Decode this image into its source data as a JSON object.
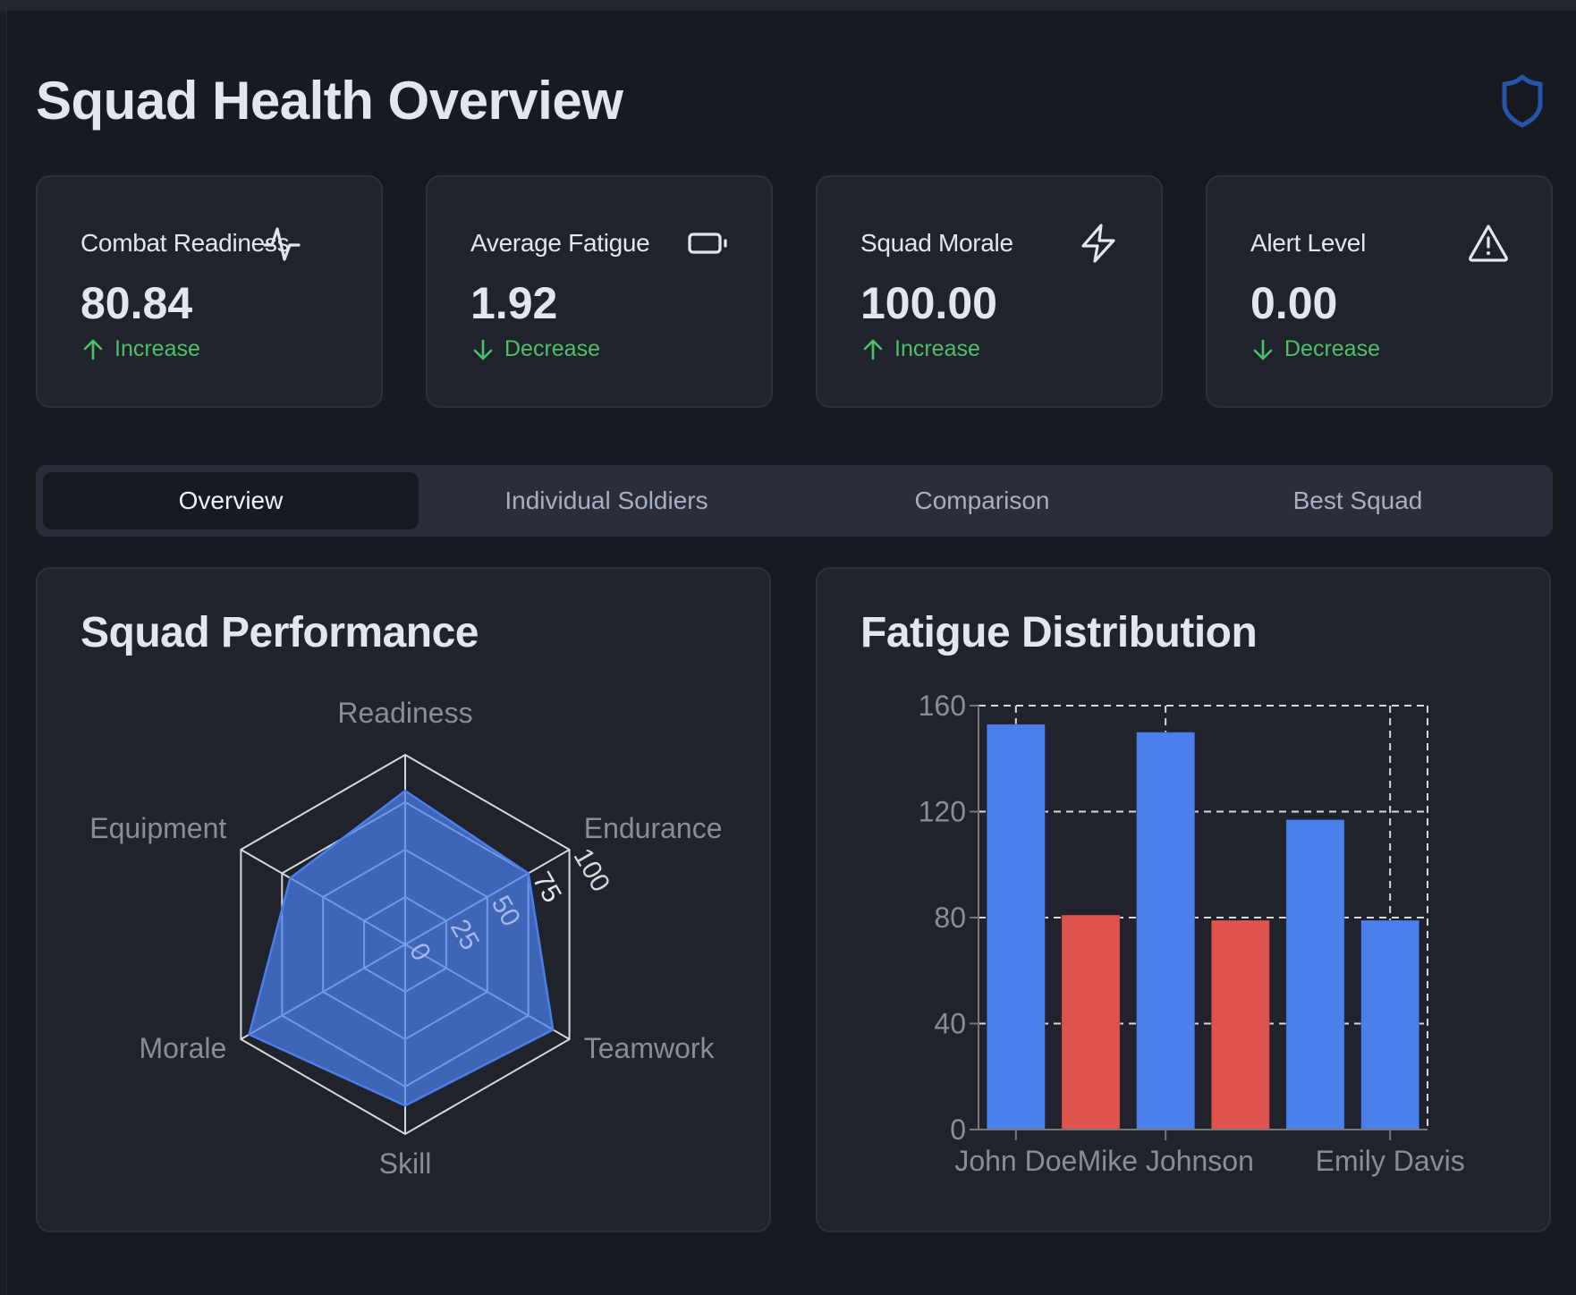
{
  "header": {
    "title": "Squad Health Overview",
    "icon": "shield-icon"
  },
  "stats": [
    {
      "label": "Combat Readiness",
      "value": "80.84",
      "trend": "Increase",
      "trend_dir": "up",
      "icon": "activity-icon"
    },
    {
      "label": "Average Fatigue",
      "value": "1.92",
      "trend": "Decrease",
      "trend_dir": "down",
      "icon": "battery-icon"
    },
    {
      "label": "Squad Morale",
      "value": "100.00",
      "trend": "Increase",
      "trend_dir": "up",
      "icon": "zap-icon"
    },
    {
      "label": "Alert Level",
      "value": "0.00",
      "trend": "Decrease",
      "trend_dir": "down",
      "icon": "alert-triangle-icon"
    }
  ],
  "tabs": [
    {
      "label": "Overview",
      "active": true
    },
    {
      "label": "Individual Soldiers",
      "active": false
    },
    {
      "label": "Comparison",
      "active": false
    },
    {
      "label": "Best Squad",
      "active": false
    }
  ],
  "colors": {
    "accent": "#4b7fec",
    "positive": "#4cc06a",
    "bar_blue": "#4b7fec",
    "bar_red": "#df534f",
    "shield": "#2556a8"
  },
  "chart_data": [
    {
      "type": "radar",
      "title": "Squad Performance",
      "axes": [
        "Readiness",
        "Endurance",
        "Teamwork",
        "Skill",
        "Morale",
        "Equipment"
      ],
      "values": [
        81,
        75,
        90,
        85,
        95,
        70
      ],
      "range": [
        0,
        100
      ],
      "ticks": [
        "0",
        "25",
        "50",
        "75",
        "100"
      ],
      "tick_values": [
        0,
        25,
        50,
        75,
        100
      ],
      "fill_color": "#4b7fec"
    },
    {
      "type": "bar",
      "title": "Fatigue Distribution",
      "categories": [
        "John Doe",
        "",
        "Mike Johnson",
        "",
        "",
        "Emily Davis"
      ],
      "tick_labels": [
        "John Doe",
        "Mike Johnson",
        "Emily Davis"
      ],
      "values": [
        153,
        81,
        150,
        79,
        117,
        79
      ],
      "bar_colors": [
        "#4b7fec",
        "#df534f",
        "#4b7fec",
        "#df534f",
        "#4b7fec",
        "#4b7fec"
      ],
      "ylim": [
        0,
        160
      ],
      "yticks": [
        "0",
        "40",
        "80",
        "120",
        "160"
      ],
      "ytick_values": [
        0,
        40,
        80,
        120,
        160
      ],
      "grid": true,
      "xlabel": "",
      "ylabel": ""
    }
  ]
}
